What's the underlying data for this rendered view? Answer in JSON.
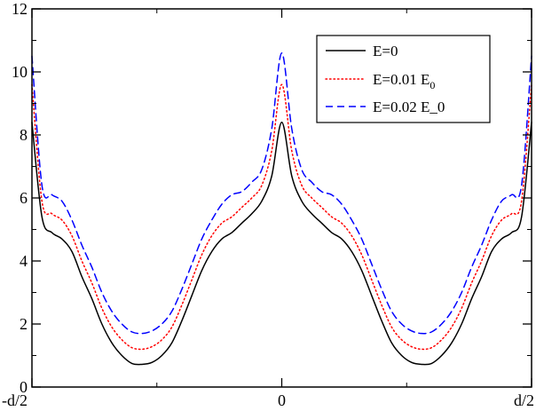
{
  "chart_data": {
    "type": "line",
    "title": "",
    "xlabel": "",
    "ylabel": "",
    "xlim": [
      -0.5,
      0.5
    ],
    "ylim": [
      0,
      12
    ],
    "grid": false,
    "legend_position": "top-right",
    "x_ticks": [
      {
        "value": -0.5,
        "label": "-d/2"
      },
      {
        "value": 0,
        "label": "0"
      },
      {
        "value": 0.5,
        "label": "d/2"
      }
    ],
    "y_ticks": [
      {
        "value": 0,
        "label": "0"
      },
      {
        "value": 2,
        "label": "2"
      },
      {
        "value": 4,
        "label": "4"
      },
      {
        "value": 6,
        "label": "6"
      },
      {
        "value": 8,
        "label": "8"
      },
      {
        "value": 10,
        "label": "10"
      },
      {
        "value": 12,
        "label": "12"
      }
    ],
    "x": [
      -0.5,
      -0.48,
      -0.46,
      -0.44,
      -0.42,
      -0.4,
      -0.38,
      -0.36,
      -0.34,
      -0.32,
      -0.3,
      -0.28,
      -0.26,
      -0.24,
      -0.22,
      -0.2,
      -0.18,
      -0.16,
      -0.14,
      -0.12,
      -0.1,
      -0.08,
      -0.06,
      -0.04,
      -0.02,
      0,
      0.02,
      0.04,
      0.06,
      0.08,
      0.1,
      0.12,
      0.14,
      0.16,
      0.18,
      0.2,
      0.22,
      0.24,
      0.26,
      0.28,
      0.3,
      0.32,
      0.34,
      0.36,
      0.38,
      0.4,
      0.42,
      0.44,
      0.46,
      0.48,
      0.5
    ],
    "series": [
      {
        "name": "E=0",
        "color": "#000000",
        "style": "solid",
        "values": [
          8.4,
          5.4,
          4.9,
          4.7,
          4.3,
          3.5,
          2.8,
          2.0,
          1.4,
          1.0,
          0.75,
          0.72,
          0.78,
          1.0,
          1.4,
          2.1,
          2.9,
          3.7,
          4.3,
          4.7,
          4.9,
          5.2,
          5.5,
          5.9,
          6.7,
          8.4,
          6.7,
          5.9,
          5.5,
          5.2,
          4.9,
          4.7,
          4.3,
          3.7,
          2.9,
          2.1,
          1.4,
          1.0,
          0.78,
          0.72,
          0.75,
          1.0,
          1.4,
          2.0,
          2.8,
          3.5,
          4.3,
          4.7,
          4.9,
          5.4,
          8.4
        ]
      },
      {
        "name_prefix": "E=0.01 E",
        "name_sub": "0",
        "color": "#ff0000",
        "style": "dotted",
        "values": [
          9.6,
          5.9,
          5.5,
          5.3,
          4.8,
          4.0,
          3.3,
          2.5,
          1.9,
          1.5,
          1.25,
          1.2,
          1.28,
          1.5,
          1.9,
          2.6,
          3.4,
          4.2,
          4.8,
          5.2,
          5.4,
          5.7,
          6.0,
          6.4,
          7.5,
          9.6,
          7.5,
          6.4,
          6.0,
          5.7,
          5.4,
          5.2,
          4.8,
          4.2,
          3.4,
          2.6,
          1.9,
          1.5,
          1.28,
          1.2,
          1.25,
          1.5,
          1.9,
          2.5,
          3.3,
          4.0,
          4.8,
          5.3,
          5.5,
          5.9,
          9.6
        ]
      },
      {
        "name": "E=0.02 E_0",
        "color": "#0000ff",
        "style": "dashed",
        "values": [
          10.5,
          6.4,
          6.1,
          5.9,
          5.3,
          4.5,
          3.8,
          3.0,
          2.4,
          2.0,
          1.75,
          1.7,
          1.78,
          2.0,
          2.4,
          3.1,
          3.9,
          4.7,
          5.3,
          5.8,
          6.1,
          6.2,
          6.5,
          6.9,
          8.2,
          10.6,
          8.2,
          6.9,
          6.5,
          6.2,
          6.1,
          5.8,
          5.3,
          4.7,
          3.9,
          3.1,
          2.4,
          2.0,
          1.78,
          1.7,
          1.75,
          2.0,
          2.4,
          3.0,
          3.8,
          4.5,
          5.3,
          5.9,
          6.1,
          6.4,
          10.5
        ]
      }
    ]
  }
}
